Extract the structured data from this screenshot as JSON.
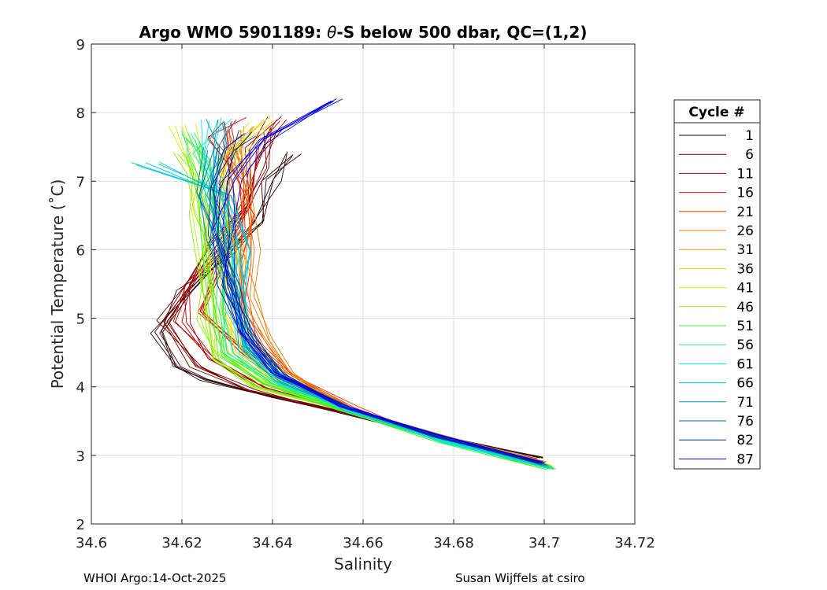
{
  "chart_data": {
    "type": "line",
    "title_prefix": "Argo WMO 5901189: ",
    "title_theta": "θ",
    "title_suffix": "-S below 500 dbar,  QC=(1,2)",
    "xlabel": "Salinity",
    "ylabel": "Potential Temperature (˚C)",
    "xlim": [
      34.6,
      34.72
    ],
    "ylim": [
      2,
      9
    ],
    "xticks": [
      34.6,
      34.62,
      34.64,
      34.66,
      34.68,
      34.7,
      34.72
    ],
    "xtick_labels": [
      "34.6",
      "34.62",
      "34.64",
      "34.66",
      "34.68",
      "34.7",
      "34.72"
    ],
    "yticks": [
      2,
      3,
      4,
      5,
      6,
      7,
      8,
      9
    ],
    "ytick_labels": [
      "2",
      "3",
      "4",
      "5",
      "6",
      "7",
      "8",
      "9"
    ],
    "grid": true,
    "legend_title": "Cycle #",
    "legend_position": "outside-right",
    "series": [
      {
        "name": "1",
        "color": "#2a0000"
      },
      {
        "name": "6",
        "color": "#7a0000"
      },
      {
        "name": "11",
        "color": "#b00000"
      },
      {
        "name": "16",
        "color": "#d81010"
      },
      {
        "name": "21",
        "color": "#ee3a00"
      },
      {
        "name": "26",
        "color": "#ef7a00"
      },
      {
        "name": "31",
        "color": "#d9a800"
      },
      {
        "name": "36",
        "color": "#f0d800"
      },
      {
        "name": "41",
        "color": "#d2f000"
      },
      {
        "name": "46",
        "color": "#8cf000"
      },
      {
        "name": "51",
        "color": "#40ee30"
      },
      {
        "name": "56",
        "color": "#25ee88"
      },
      {
        "name": "61",
        "color": "#00e8d8"
      },
      {
        "name": "66",
        "color": "#00c8d8"
      },
      {
        "name": "71",
        "color": "#0098b8"
      },
      {
        "name": "76",
        "color": "#0070a8"
      },
      {
        "name": "82",
        "color": "#002a8a"
      },
      {
        "name": "87",
        "color": "#0000ee"
      }
    ],
    "profile_templates": [
      {
        "pts": [
          [
            34.6995,
            2.97
          ],
          [
            34.675,
            3.3
          ],
          [
            34.65,
            3.7
          ],
          [
            34.64,
            3.85
          ],
          [
            34.625,
            4.1
          ],
          [
            34.619,
            4.3
          ],
          [
            34.614,
            4.8
          ],
          [
            34.621,
            5.4
          ],
          [
            34.63,
            5.9
          ],
          [
            34.636,
            6.4
          ],
          [
            34.64,
            7.0
          ],
          [
            34.643,
            7.4
          ]
        ]
      },
      {
        "pts": [
          [
            34.6985,
            2.95
          ],
          [
            34.675,
            3.3
          ],
          [
            34.65,
            3.72
          ],
          [
            34.635,
            3.95
          ],
          [
            34.623,
            4.3
          ],
          [
            34.616,
            4.95
          ],
          [
            34.622,
            5.5
          ],
          [
            34.628,
            6.1
          ],
          [
            34.634,
            6.6
          ],
          [
            34.638,
            7.2
          ],
          [
            34.641,
            7.75
          ]
        ]
      },
      {
        "pts": [
          [
            34.699,
            2.9
          ],
          [
            34.675,
            3.28
          ],
          [
            34.652,
            3.72
          ],
          [
            34.638,
            4.0
          ],
          [
            34.626,
            4.4
          ],
          [
            34.62,
            4.95
          ],
          [
            34.622,
            5.5
          ],
          [
            34.629,
            6.0
          ],
          [
            34.635,
            6.7
          ],
          [
            34.637,
            7.5
          ],
          [
            34.641,
            7.9
          ]
        ]
      },
      {
        "pts": [
          [
            34.6995,
            2.88
          ],
          [
            34.676,
            3.25
          ],
          [
            34.655,
            3.7
          ],
          [
            34.641,
            4.1
          ],
          [
            34.633,
            4.5
          ],
          [
            34.624,
            5.1
          ],
          [
            34.628,
            5.8
          ],
          [
            34.633,
            6.3
          ],
          [
            34.631,
            7.0
          ],
          [
            34.629,
            7.6
          ],
          [
            34.632,
            7.9
          ]
        ]
      },
      {
        "pts": [
          [
            34.7,
            2.85
          ],
          [
            34.678,
            3.2
          ],
          [
            34.658,
            3.7
          ],
          [
            34.645,
            4.15
          ],
          [
            34.638,
            4.6
          ],
          [
            34.634,
            5.1
          ],
          [
            34.633,
            5.8
          ],
          [
            34.636,
            6.5
          ],
          [
            34.631,
            7.2
          ],
          [
            34.63,
            7.7
          ]
        ]
      },
      {
        "pts": [
          [
            34.7005,
            2.86
          ],
          [
            34.678,
            3.25
          ],
          [
            34.657,
            3.68
          ],
          [
            34.644,
            4.2
          ],
          [
            34.639,
            4.7
          ],
          [
            34.635,
            5.3
          ],
          [
            34.636,
            6.0
          ],
          [
            34.634,
            6.8
          ],
          [
            34.632,
            7.5
          ]
        ]
      },
      {
        "pts": [
          [
            34.7,
            2.9
          ],
          [
            34.676,
            3.3
          ],
          [
            34.656,
            3.7
          ],
          [
            34.642,
            4.1
          ],
          [
            34.634,
            4.6
          ],
          [
            34.631,
            5.2
          ],
          [
            34.632,
            5.9
          ],
          [
            34.63,
            6.6
          ],
          [
            34.631,
            7.3
          ],
          [
            34.636,
            7.8
          ]
        ]
      },
      {
        "pts": [
          [
            34.7005,
            2.85
          ],
          [
            34.677,
            3.25
          ],
          [
            34.655,
            3.68
          ],
          [
            34.64,
            4.05
          ],
          [
            34.632,
            4.5
          ],
          [
            34.629,
            5.1
          ],
          [
            34.63,
            5.9
          ],
          [
            34.628,
            6.6
          ],
          [
            34.63,
            7.3
          ],
          [
            34.638,
            7.9
          ]
        ]
      },
      {
        "pts": [
          [
            34.701,
            2.85
          ],
          [
            34.677,
            3.25
          ],
          [
            34.655,
            3.7
          ],
          [
            34.638,
            4.05
          ],
          [
            34.629,
            4.5
          ],
          [
            34.627,
            5.1
          ],
          [
            34.626,
            5.9
          ],
          [
            34.625,
            6.6
          ],
          [
            34.623,
            7.2
          ],
          [
            34.62,
            7.8
          ]
        ]
      },
      {
        "pts": [
          [
            34.7015,
            2.82
          ],
          [
            34.677,
            3.22
          ],
          [
            34.654,
            3.7
          ],
          [
            34.637,
            4.0
          ],
          [
            34.627,
            4.4
          ],
          [
            34.625,
            5.0
          ],
          [
            34.626,
            5.7
          ],
          [
            34.624,
            6.5
          ],
          [
            34.623,
            7.1
          ],
          [
            34.619,
            7.4
          ]
        ]
      },
      {
        "pts": [
          [
            34.7015,
            2.8
          ],
          [
            34.677,
            3.2
          ],
          [
            34.655,
            3.68
          ],
          [
            34.638,
            4.05
          ],
          [
            34.628,
            4.45
          ],
          [
            34.627,
            5.0
          ],
          [
            34.627,
            5.8
          ],
          [
            34.626,
            6.5
          ],
          [
            34.624,
            7.3
          ],
          [
            34.623,
            7.6
          ]
        ]
      },
      {
        "pts": [
          [
            34.702,
            2.8
          ],
          [
            34.678,
            3.2
          ],
          [
            34.656,
            3.68
          ],
          [
            34.64,
            4.05
          ],
          [
            34.63,
            4.5
          ],
          [
            34.629,
            5.1
          ],
          [
            34.629,
            5.8
          ],
          [
            34.627,
            6.6
          ],
          [
            34.625,
            7.3
          ],
          [
            34.622,
            7.7
          ]
        ]
      },
      {
        "pts": [
          [
            34.7015,
            2.82
          ],
          [
            34.678,
            3.2
          ],
          [
            34.657,
            3.65
          ],
          [
            34.642,
            4.05
          ],
          [
            34.634,
            4.5
          ],
          [
            34.632,
            5.1
          ],
          [
            34.632,
            5.9
          ],
          [
            34.628,
            6.7
          ],
          [
            34.625,
            7.4
          ],
          [
            34.628,
            7.9
          ]
        ]
      },
      {
        "pts": [
          [
            34.701,
            2.83
          ],
          [
            34.678,
            3.22
          ],
          [
            34.657,
            3.65
          ],
          [
            34.643,
            4.1
          ],
          [
            34.635,
            4.55
          ],
          [
            34.634,
            5.2
          ],
          [
            34.633,
            6.0
          ],
          [
            34.629,
            6.8
          ],
          [
            34.612,
            7.27
          ]
        ]
      },
      {
        "pts": [
          [
            34.7005,
            2.85
          ],
          [
            34.678,
            3.25
          ],
          [
            34.657,
            3.68
          ],
          [
            34.642,
            4.1
          ],
          [
            34.634,
            4.6
          ],
          [
            34.632,
            5.3
          ],
          [
            34.63,
            6.0
          ],
          [
            34.627,
            6.8
          ],
          [
            34.627,
            7.5
          ],
          [
            34.628,
            7.9
          ]
        ]
      },
      {
        "pts": [
          [
            34.7,
            2.87
          ],
          [
            34.677,
            3.27
          ],
          [
            34.656,
            3.7
          ],
          [
            34.642,
            4.15
          ],
          [
            34.635,
            4.7
          ],
          [
            34.632,
            5.4
          ],
          [
            34.628,
            6.1
          ],
          [
            34.626,
            6.8
          ],
          [
            34.628,
            7.5
          ]
        ]
      },
      {
        "pts": [
          [
            34.6995,
            2.88
          ],
          [
            34.676,
            3.28
          ],
          [
            34.655,
            3.72
          ],
          [
            34.641,
            4.2
          ],
          [
            34.634,
            4.8
          ],
          [
            34.631,
            5.5
          ],
          [
            34.628,
            6.2
          ],
          [
            34.627,
            6.9
          ],
          [
            34.63,
            7.5
          ],
          [
            34.634,
            7.7
          ]
        ]
      },
      {
        "pts": [
          [
            34.6995,
            2.9
          ],
          [
            34.676,
            3.3
          ],
          [
            34.655,
            3.72
          ],
          [
            34.64,
            4.2
          ],
          [
            34.633,
            4.8
          ],
          [
            34.63,
            5.5
          ],
          [
            34.629,
            6.3
          ],
          [
            34.63,
            7.0
          ],
          [
            34.637,
            7.6
          ],
          [
            34.653,
            8.17
          ]
        ]
      }
    ]
  },
  "footer": {
    "left": "WHOI Argo:14-Oct-2025",
    "right": "Susan Wijffels at csiro"
  }
}
